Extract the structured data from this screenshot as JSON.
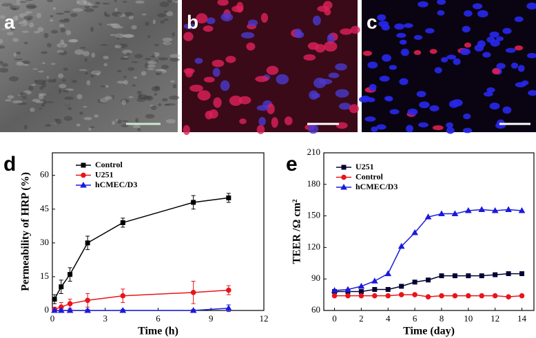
{
  "images": [
    {
      "label": "a"
    },
    {
      "label": "b"
    },
    {
      "label": "c"
    }
  ],
  "chart_data": [
    {
      "type": "line",
      "panel_label": "d",
      "x_label": "Time (h)",
      "y_label": "Permeability of HRP (%)",
      "xlim": [
        0,
        12
      ],
      "xticks": [
        0,
        3,
        6,
        9,
        12
      ],
      "ylim": [
        0,
        70
      ],
      "yticks": [
        0,
        15,
        30,
        45,
        60
      ],
      "legend": "upper-left",
      "x": [
        0.12,
        0.5,
        1,
        2,
        4,
        8,
        10
      ],
      "series": [
        {
          "name": "Control",
          "color": "#000000",
          "marker": "square",
          "values": [
            5,
            10.5,
            16,
            30,
            39,
            48,
            50
          ],
          "errors": [
            2,
            3,
            3,
            3,
            2,
            3,
            2
          ]
        },
        {
          "name": "U251",
          "color": "#e8141b",
          "marker": "circle",
          "values": [
            0.5,
            1.5,
            3,
            4.5,
            6.5,
            8,
            9
          ],
          "errors": [
            1,
            2,
            2,
            3,
            3,
            5,
            2
          ]
        },
        {
          "name": "hCMEC/D3",
          "color": "#1a1adc",
          "marker": "triangle",
          "values": [
            0,
            0,
            0,
            0,
            0,
            0,
            1
          ],
          "errors": [
            0.5,
            0.5,
            0.5,
            0.5,
            0.5,
            0.5,
            1.5
          ]
        }
      ]
    },
    {
      "type": "line",
      "panel_label": "e",
      "x_label": "Time (day)",
      "y_label": "TEER /Ω cm²",
      "xlim": [
        -0.8,
        14.9
      ],
      "xticks": [
        0,
        2,
        4,
        6,
        8,
        10,
        12,
        14
      ],
      "ylim": [
        60,
        210
      ],
      "yticks": [
        60,
        90,
        120,
        150,
        180,
        210
      ],
      "legend": "upper-left",
      "x": [
        0,
        1,
        2,
        3,
        4,
        5,
        6,
        7,
        8,
        9,
        10,
        11,
        12,
        13,
        14
      ],
      "series": [
        {
          "name": "U251",
          "color": "#000033",
          "marker": "square",
          "values": [
            78,
            78,
            78,
            80,
            80,
            83,
            87,
            89,
            93,
            93,
            93,
            93,
            94,
            95,
            95
          ]
        },
        {
          "name": "Control",
          "color": "#e8141b",
          "marker": "circle",
          "values": [
            74,
            74,
            74,
            74,
            74,
            75,
            75,
            73,
            74,
            74,
            74,
            74,
            74,
            73,
            74
          ]
        },
        {
          "name": "hCMEC/D3",
          "color": "#1a1adc",
          "marker": "triangle",
          "values": [
            79,
            80,
            83,
            88,
            95,
            121,
            134,
            149,
            152,
            152,
            155,
            156,
            155,
            156,
            155
          ]
        }
      ]
    }
  ]
}
